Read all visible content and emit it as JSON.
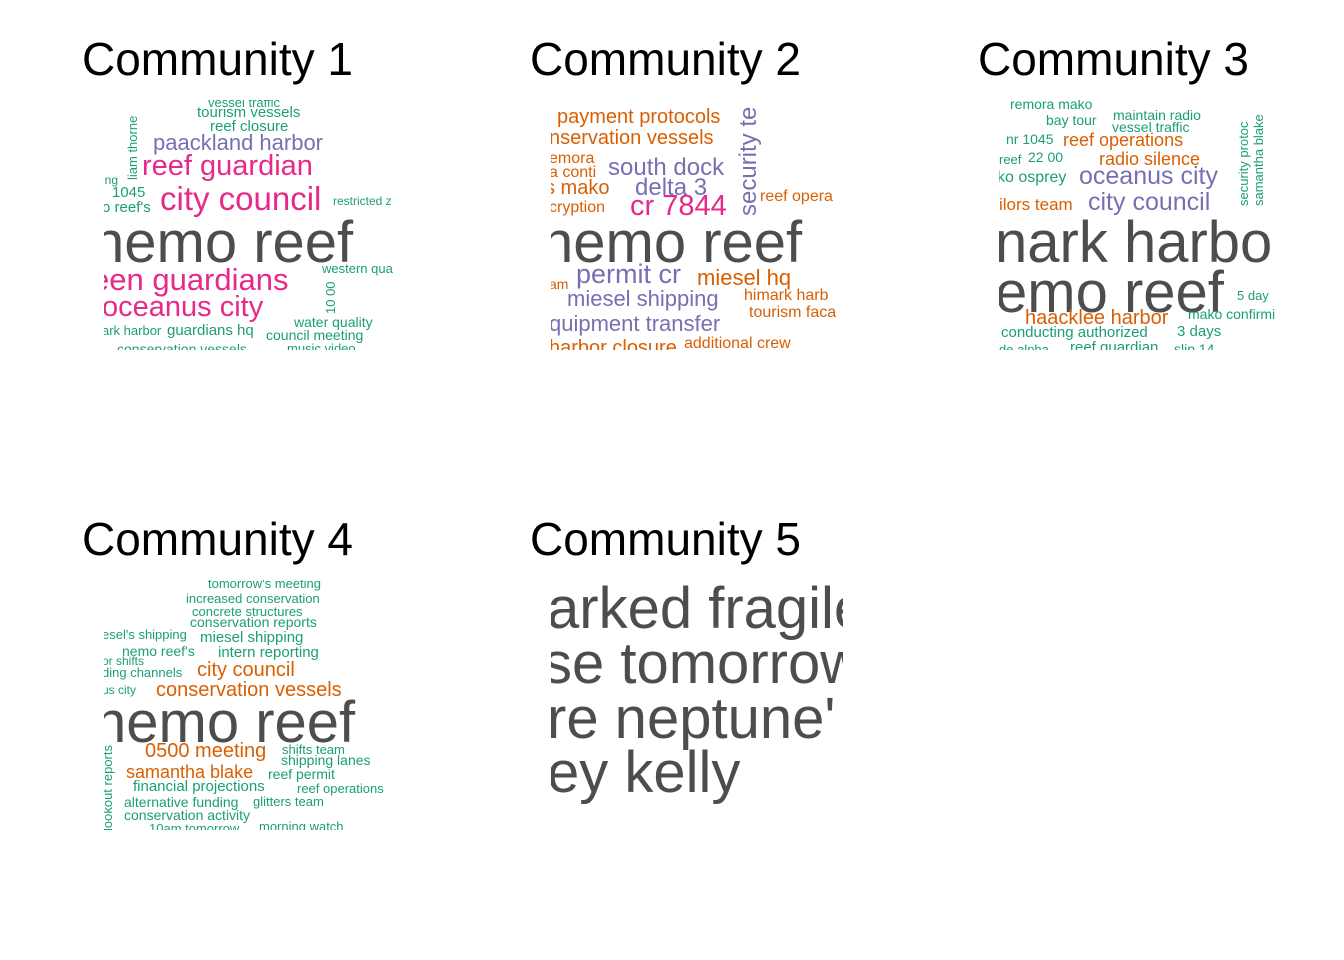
{
  "colors": {
    "dark": "#4d4d4d",
    "magenta": "#e7298a",
    "purple": "#7570b3",
    "orange": "#d95f02",
    "green": "#1b9e77"
  },
  "chart_data": [
    {
      "type": "wordcloud",
      "title": "Community 1",
      "words": [
        {
          "text": "vessel traffic",
          "color": "green",
          "size": 13
        },
        {
          "text": "tourism vessels",
          "color": "green",
          "size": 15
        },
        {
          "text": "reef closure",
          "color": "green",
          "size": 15
        },
        {
          "text": "paackland harbor",
          "color": "purple",
          "size": 22
        },
        {
          "text": "liam thorne",
          "color": "green",
          "size": 13
        },
        {
          "text": "reef guardian",
          "color": "magenta",
          "size": 29
        },
        {
          "text": "ing",
          "color": "green",
          "size": 12
        },
        {
          "text": "1045",
          "color": "green",
          "size": 15
        },
        {
          "text": "city council",
          "color": "magenta",
          "size": 33
        },
        {
          "text": "o reef's",
          "color": "green",
          "size": 15
        },
        {
          "text": "restricted z",
          "color": "green",
          "size": 12
        },
        {
          "text": "nemo reef",
          "color": "dark",
          "size": 58
        },
        {
          "text": "een guardians",
          "color": "magenta",
          "size": 31
        },
        {
          "text": "western qua",
          "color": "green",
          "size": 13
        },
        {
          "text": "10 00",
          "color": "green",
          "size": 13
        },
        {
          "text": "oceanus city",
          "color": "magenta",
          "size": 29
        },
        {
          "text": "water quality",
          "color": "green",
          "size": 14
        },
        {
          "text": "ark harbor",
          "color": "green",
          "size": 13
        },
        {
          "text": "guardians hq",
          "color": "green",
          "size": 15
        },
        {
          "text": "council meeting",
          "color": "green",
          "size": 14
        },
        {
          "text": "conservation vessels",
          "color": "green",
          "size": 14
        },
        {
          "text": "music video",
          "color": "green",
          "size": 13
        }
      ]
    },
    {
      "type": "wordcloud",
      "title": "Community 2",
      "words": [
        {
          "text": "payment protocols",
          "color": "orange",
          "size": 20
        },
        {
          "text": "nservation vessels",
          "color": "orange",
          "size": 20
        },
        {
          "text": "security te",
          "color": "purple",
          "size": 24
        },
        {
          "text": "emora",
          "color": "orange",
          "size": 16
        },
        {
          "text": "south dock",
          "color": "purple",
          "size": 24
        },
        {
          "text": "a conti",
          "color": "orange",
          "size": 16
        },
        {
          "text": "s mako",
          "color": "orange",
          "size": 20
        },
        {
          "text": "delta 3",
          "color": "purple",
          "size": 24
        },
        {
          "text": "reef opera",
          "color": "orange",
          "size": 16
        },
        {
          "text": "cryption",
          "color": "orange",
          "size": 16
        },
        {
          "text": "cr 7844",
          "color": "magenta",
          "size": 29
        },
        {
          "text": "nemo reef",
          "color": "dark",
          "size": 58
        },
        {
          "text": "permit cr",
          "color": "purple",
          "size": 27
        },
        {
          "text": "miesel hq",
          "color": "orange",
          "size": 22
        },
        {
          "text": "am",
          "color": "orange",
          "size": 14
        },
        {
          "text": "miesel shipping",
          "color": "purple",
          "size": 22
        },
        {
          "text": "himark harb",
          "color": "orange",
          "size": 16
        },
        {
          "text": "tourism faca",
          "color": "orange",
          "size": 16
        },
        {
          "text": "quipment transfer",
          "color": "purple",
          "size": 22
        },
        {
          "text": "harbor closure",
          "color": "orange",
          "size": 20
        },
        {
          "text": "additional crew",
          "color": "orange",
          "size": 16
        }
      ]
    },
    {
      "type": "wordcloud",
      "title": "Community 3",
      "words": [
        {
          "text": "remora mako",
          "color": "green",
          "size": 14
        },
        {
          "text": "bay tour",
          "color": "green",
          "size": 14
        },
        {
          "text": "maintain radio",
          "color": "green",
          "size": 14
        },
        {
          "text": "vessel traffic",
          "color": "green",
          "size": 14
        },
        {
          "text": "security protoc",
          "color": "green",
          "size": 13
        },
        {
          "text": "samantha blake",
          "color": "green",
          "size": 13
        },
        {
          "text": "nr 1045",
          "color": "green",
          "size": 14
        },
        {
          "text": "reef operations",
          "color": "orange",
          "size": 18
        },
        {
          "text": "reef",
          "color": "green",
          "size": 13
        },
        {
          "text": "22 00",
          "color": "green",
          "size": 14
        },
        {
          "text": "radio silence",
          "color": "orange",
          "size": 18
        },
        {
          "text": "ko osprey",
          "color": "green",
          "size": 16
        },
        {
          "text": "oceanus city",
          "color": "purple",
          "size": 25
        },
        {
          "text": "ilors team",
          "color": "orange",
          "size": 17
        },
        {
          "text": "city council",
          "color": "purple",
          "size": 25
        },
        {
          "text": "nark harbo",
          "color": "dark",
          "size": 58
        },
        {
          "text": "emo reef",
          "color": "dark",
          "size": 58
        },
        {
          "text": "5 day",
          "color": "green",
          "size": 13
        },
        {
          "text": "haacklee harbor",
          "color": "orange",
          "size": 20
        },
        {
          "text": "mako confirmi",
          "color": "green",
          "size": 14
        },
        {
          "text": "conducting authorized",
          "color": "green",
          "size": 15
        },
        {
          "text": "3 days",
          "color": "green",
          "size": 15
        },
        {
          "text": "de alpha",
          "color": "green",
          "size": 13
        },
        {
          "text": "reef guardian",
          "color": "green",
          "size": 15
        },
        {
          "text": "slip 14",
          "color": "green",
          "size": 14
        }
      ]
    },
    {
      "type": "wordcloud",
      "title": "Community 4",
      "words": [
        {
          "text": "tomorrow's meeting",
          "color": "green",
          "size": 13
        },
        {
          "text": "increased conservation",
          "color": "green",
          "size": 13
        },
        {
          "text": "concrete structures",
          "color": "green",
          "size": 13
        },
        {
          "text": "conservation reports",
          "color": "green",
          "size": 14
        },
        {
          "text": "esel's shipping",
          "color": "green",
          "size": 13
        },
        {
          "text": "miesel shipping",
          "color": "green",
          "size": 15
        },
        {
          "text": "nemo reef's",
          "color": "green",
          "size": 14
        },
        {
          "text": "intern reporting",
          "color": "green",
          "size": 15
        },
        {
          "text": "or shifts",
          "color": "green",
          "size": 12
        },
        {
          "text": "city council",
          "color": "orange",
          "size": 20
        },
        {
          "text": "ding channels",
          "color": "green",
          "size": 13
        },
        {
          "text": "us city",
          "color": "green",
          "size": 12
        },
        {
          "text": "conservation vessels",
          "color": "orange",
          "size": 20
        },
        {
          "text": "nemo reef",
          "color": "dark",
          "size": 58
        },
        {
          "text": "lookout reports",
          "color": "green",
          "size": 13
        },
        {
          "text": "0500 meeting",
          "color": "orange",
          "size": 20
        },
        {
          "text": "shifts team",
          "color": "green",
          "size": 13
        },
        {
          "text": "shipping lanes",
          "color": "green",
          "size": 14
        },
        {
          "text": "samantha blake",
          "color": "orange",
          "size": 18
        },
        {
          "text": "reef permit",
          "color": "green",
          "size": 14
        },
        {
          "text": "financial projections",
          "color": "green",
          "size": 15
        },
        {
          "text": "reef operations",
          "color": "green",
          "size": 13
        },
        {
          "text": "alternative funding",
          "color": "green",
          "size": 14
        },
        {
          "text": "glitters team",
          "color": "green",
          "size": 13
        },
        {
          "text": "conservation activity",
          "color": "green",
          "size": 14
        },
        {
          "text": "10am tomorrow",
          "color": "green",
          "size": 13
        },
        {
          "text": "morning watch",
          "color": "green",
          "size": 13
        }
      ]
    },
    {
      "type": "wordcloud",
      "title": "Community 5",
      "words": [
        {
          "text": "arked fragile",
          "color": "dark",
          "size": 58
        },
        {
          "text": "se tomorrow",
          "color": "dark",
          "size": 58
        },
        {
          "text": "re neptune'",
          "color": "dark",
          "size": 58
        },
        {
          "text": "ey kelly",
          "color": "dark",
          "size": 58
        }
      ]
    }
  ]
}
